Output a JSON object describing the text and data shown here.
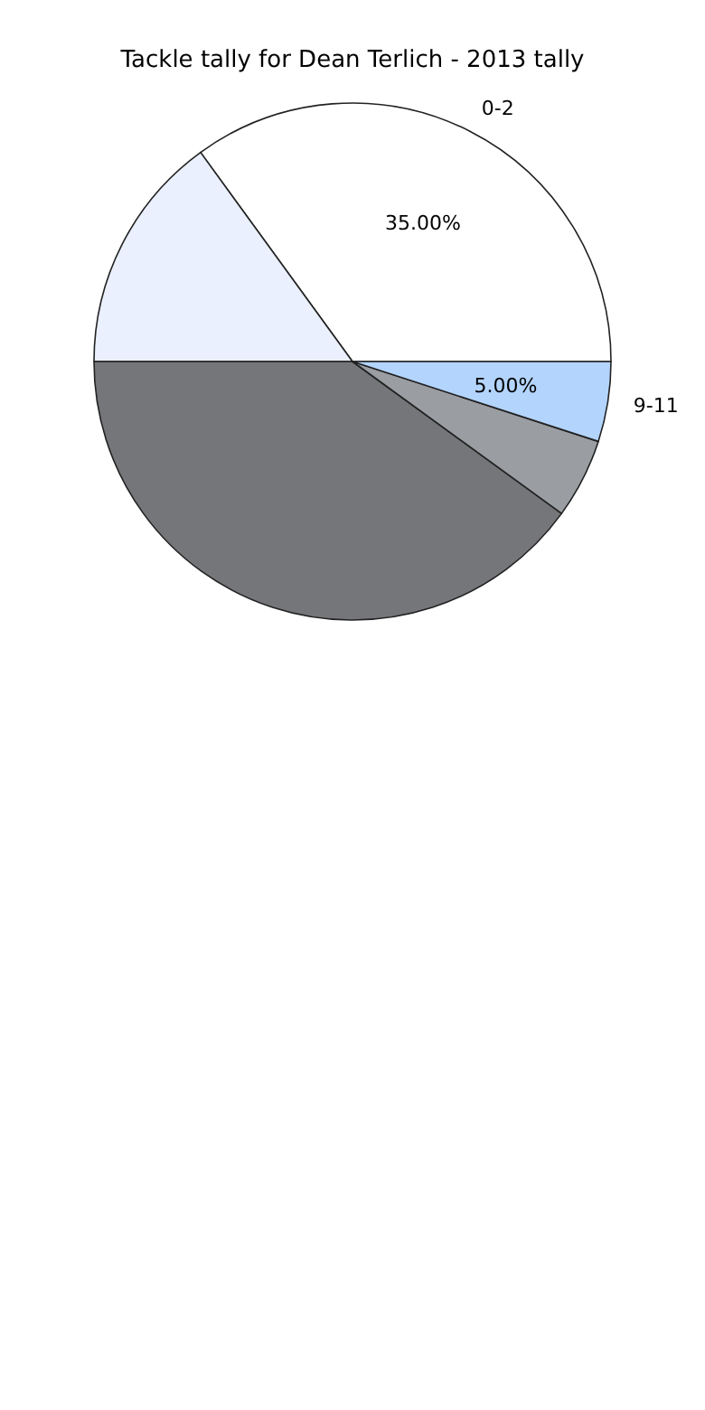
{
  "chart_data": {
    "type": "pie",
    "title": "Tackle tally for Dean Terlich - 2013 tally",
    "categories": [
      "0-2",
      null,
      null,
      null,
      "9-11"
    ],
    "values": [
      35,
      15,
      40,
      5,
      5
    ],
    "colors": [
      "#ffffff",
      "#eaf0fe",
      "#757679",
      "#9a9da2",
      "#b3d4fd"
    ],
    "value_labels": [
      "35.00%",
      null,
      null,
      null,
      "5.00%"
    ],
    "legend": false
  }
}
